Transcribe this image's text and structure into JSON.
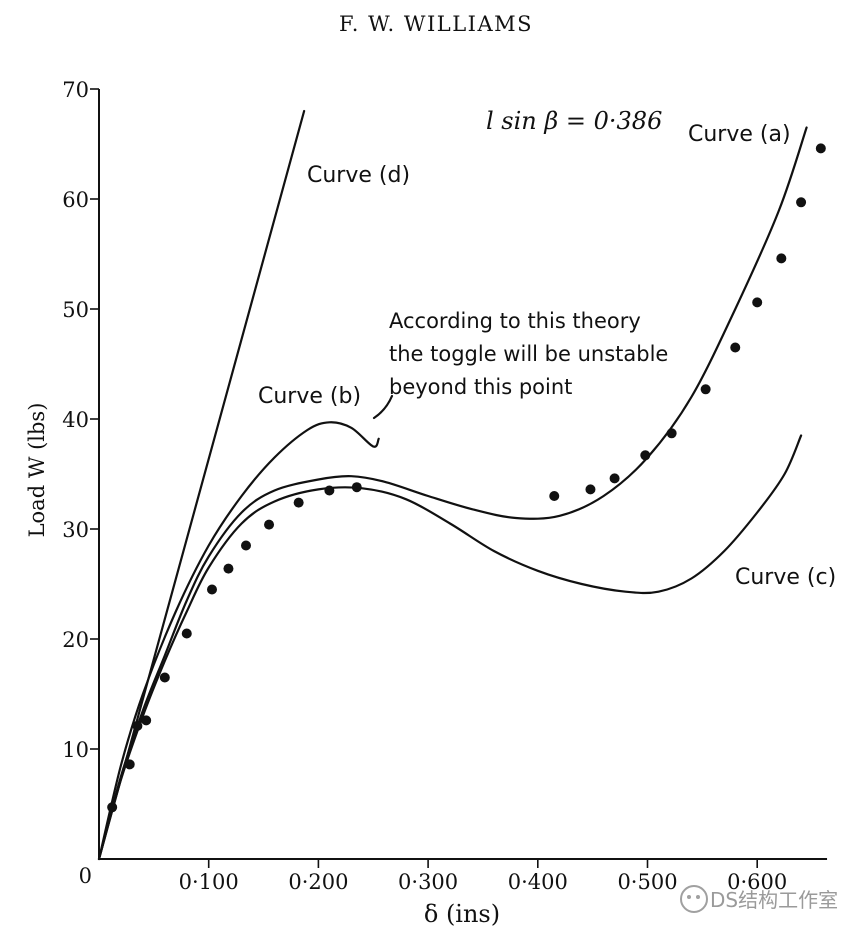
{
  "header": {
    "author": "F. W. WILLIAMS"
  },
  "chart_data": {
    "type": "line",
    "xlabel": "δ (ins)",
    "ylabel": "Load W (lbs)",
    "xlim": [
      0,
      0.65
    ],
    "ylim": [
      0,
      70
    ],
    "x_ticks": [
      {
        "value": 0.1,
        "label": "0·100"
      },
      {
        "value": 0.2,
        "label": "0·200"
      },
      {
        "value": 0.3,
        "label": "0·300"
      },
      {
        "value": 0.4,
        "label": "0·400"
      },
      {
        "value": 0.5,
        "label": "0·500"
      },
      {
        "value": 0.6,
        "label": "0·600"
      }
    ],
    "y_ticks": [
      {
        "value": 0,
        "label": "0"
      },
      {
        "value": 10,
        "label": "10"
      },
      {
        "value": 20,
        "label": "20"
      },
      {
        "value": 30,
        "label": "30"
      },
      {
        "value": 40,
        "label": "40"
      },
      {
        "value": 50,
        "label": "50"
      },
      {
        "value": 60,
        "label": "60"
      },
      {
        "value": 70,
        "label": "70"
      }
    ],
    "parameter_label": "l sin β = 0·386",
    "annotation": [
      "According to this theory",
      "the toggle will be unstable",
      "beyond this point"
    ],
    "series": [
      {
        "name": "Curve (a)",
        "points": [
          [
            0,
            0
          ],
          [
            0.02,
            7.5
          ],
          [
            0.04,
            13.5
          ],
          [
            0.06,
            18.5
          ],
          [
            0.08,
            23.5
          ],
          [
            0.1,
            27.5
          ],
          [
            0.13,
            31.5
          ],
          [
            0.16,
            33.5
          ],
          [
            0.2,
            34.5
          ],
          [
            0.23,
            34.8
          ],
          [
            0.26,
            34.3
          ],
          [
            0.3,
            33
          ],
          [
            0.34,
            31.8
          ],
          [
            0.38,
            31
          ],
          [
            0.42,
            31.2
          ],
          [
            0.46,
            33
          ],
          [
            0.5,
            36.5
          ],
          [
            0.54,
            42
          ],
          [
            0.58,
            50
          ],
          [
            0.62,
            59
          ],
          [
            0.645,
            66.5
          ]
        ]
      },
      {
        "name": "Curve (b)",
        "points": [
          [
            0,
            0
          ],
          [
            0.02,
            8.5
          ],
          [
            0.04,
            15
          ],
          [
            0.07,
            22.5
          ],
          [
            0.1,
            28.5
          ],
          [
            0.13,
            33
          ],
          [
            0.16,
            36.5
          ],
          [
            0.19,
            39
          ],
          [
            0.21,
            39.7
          ],
          [
            0.23,
            39.2
          ],
          [
            0.25,
            37.5
          ],
          [
            0.255,
            38.2
          ]
        ]
      },
      {
        "name": "Curve (c)",
        "points": [
          [
            0,
            0
          ],
          [
            0.02,
            7.2
          ],
          [
            0.04,
            13
          ],
          [
            0.06,
            18
          ],
          [
            0.08,
            22.5
          ],
          [
            0.1,
            26.5
          ],
          [
            0.13,
            30.5
          ],
          [
            0.16,
            32.5
          ],
          [
            0.2,
            33.6
          ],
          [
            0.24,
            33.7
          ],
          [
            0.28,
            32.7
          ],
          [
            0.32,
            30.5
          ],
          [
            0.36,
            28
          ],
          [
            0.4,
            26.2
          ],
          [
            0.44,
            25
          ],
          [
            0.48,
            24.3
          ],
          [
            0.51,
            24.3
          ],
          [
            0.54,
            25.5
          ],
          [
            0.57,
            28
          ],
          [
            0.6,
            31.5
          ],
          [
            0.625,
            35
          ],
          [
            0.64,
            38.5
          ]
        ]
      },
      {
        "name": "Curve (d)",
        "points": [
          [
            0,
            0
          ],
          [
            0.187,
            68
          ]
        ]
      }
    ],
    "experimental_points": [
      [
        0.012,
        4.7
      ],
      [
        0.028,
        8.6
      ],
      [
        0.035,
        12.1
      ],
      [
        0.043,
        12.6
      ],
      [
        0.06,
        16.5
      ],
      [
        0.08,
        20.5
      ],
      [
        0.103,
        24.5
      ],
      [
        0.118,
        26.4
      ],
      [
        0.134,
        28.5
      ],
      [
        0.155,
        30.4
      ],
      [
        0.182,
        32.4
      ],
      [
        0.21,
        33.5
      ],
      [
        0.235,
        33.8
      ],
      [
        0.415,
        33
      ],
      [
        0.448,
        33.6
      ],
      [
        0.47,
        34.6
      ],
      [
        0.498,
        36.7
      ],
      [
        0.522,
        38.7
      ],
      [
        0.553,
        42.7
      ],
      [
        0.58,
        46.5
      ],
      [
        0.6,
        50.6
      ],
      [
        0.622,
        54.6
      ],
      [
        0.64,
        59.7
      ],
      [
        0.658,
        64.6
      ]
    ],
    "curve_labels": [
      {
        "series": "Curve (d)",
        "text": "Curve (d)"
      },
      {
        "series": "Curve (b)",
        "text": "Curve (b)"
      },
      {
        "series": "Curve (a)",
        "text": "Curve (a)"
      },
      {
        "series": "Curve (c)",
        "text": "Curve (c)"
      }
    ],
    "grid": false,
    "legend": "none"
  },
  "watermark": {
    "text": "DS结构工作室"
  }
}
